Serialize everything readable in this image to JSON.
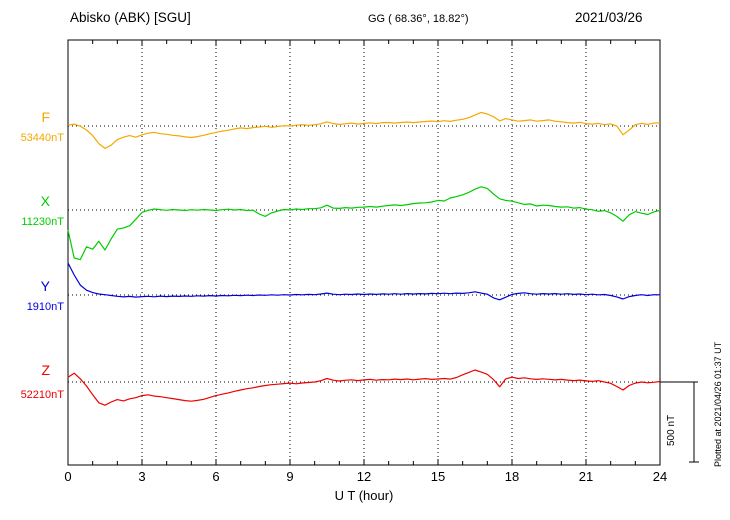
{
  "header": {
    "station": "Abisko (ABK)  [SGU]",
    "coords": "GG ( 68.36°,  18.82°)",
    "date": "2021/03/26"
  },
  "axis": {
    "xlabel": "U T (hour)",
    "x_ticks": [
      "0",
      "3",
      "6",
      "9",
      "12",
      "15",
      "18",
      "21",
      "24"
    ]
  },
  "scale_bar": {
    "label": "500 nT",
    "nT": 500
  },
  "footer": {
    "note": "Plotted at 2021/04/26 01:37 UT"
  },
  "chart_data": {
    "type": "line",
    "title": "Abisko (ABK) [SGU] magnetogram 2021/03/26",
    "xlabel": "U T (hour)",
    "x_range": [
      0,
      24
    ],
    "x_step_hours": 0.25,
    "scale_nT": 500,
    "grid": "dotted vertical every 3 h, dotted horizontal at each trace baseline",
    "series": [
      {
        "name": "F",
        "baseline_label": "53440nT",
        "baseline_nT": 53440,
        "color": "#f5a800",
        "offsets_nT": [
          5,
          12,
          -2,
          -25,
          -60,
          -110,
          -140,
          -120,
          -85,
          -70,
          -60,
          -70,
          -55,
          -45,
          -40,
          -48,
          -52,
          -58,
          -62,
          -68,
          -72,
          -66,
          -58,
          -48,
          -40,
          -32,
          -26,
          -18,
          -12,
          -16,
          -10,
          -6,
          -2,
          -8,
          -3,
          2,
          0,
          5,
          8,
          4,
          8,
          14,
          26,
          15,
          10,
          14,
          18,
          12,
          16,
          20,
          15,
          21,
          22,
          18,
          22,
          25,
          21,
          25,
          28,
          31,
          27,
          33,
          29,
          36,
          42,
          52,
          68,
          85,
          75,
          58,
          32,
          46,
          38,
          30,
          34,
          38,
          30,
          34,
          38,
          30,
          26,
          21,
          18,
          23,
          15,
          12,
          16,
          8,
          13,
          0,
          -55,
          -25,
          8,
          16,
          10,
          18,
          20
        ]
      },
      {
        "name": "X",
        "baseline_label": "11230nT",
        "baseline_nT": 11230,
        "color": "#00cc00",
        "offsets_nT": [
          -125,
          -300,
          -310,
          -230,
          -245,
          -195,
          -250,
          -180,
          -120,
          -112,
          -98,
          -58,
          -15,
          -2,
          6,
          2,
          -2,
          3,
          0,
          -3,
          2,
          -1,
          3,
          0,
          -3,
          2,
          5,
          0,
          3,
          -3,
          -1,
          -25,
          -40,
          -18,
          -6,
          3,
          0,
          6,
          3,
          8,
          8,
          14,
          30,
          12,
          10,
          15,
          12,
          17,
          18,
          22,
          18,
          24,
          28,
          32,
          28,
          34,
          40,
          44,
          45,
          50,
          60,
          56,
          75,
          84,
          95,
          110,
          130,
          145,
          135,
          100,
          70,
          60,
          55,
          45,
          35,
          38,
          25,
          30,
          28,
          22,
          18,
          20,
          12,
          15,
          5,
          2,
          -8,
          -4,
          -18,
          -40,
          -70,
          -30,
          -10,
          -20,
          -28,
          -12,
          -2
        ]
      },
      {
        "name": "Y",
        "baseline_label": "1910nT",
        "baseline_nT": 1910,
        "color": "#0000dd",
        "offsets_nT": [
          200,
          125,
          62,
          30,
          15,
          6,
          2,
          -3,
          -8,
          -12,
          -9,
          -13,
          -10,
          -8,
          -11,
          -7,
          -10,
          -7,
          -9,
          -6,
          -8,
          -5,
          -7,
          -4,
          -6,
          -3,
          -5,
          -2,
          -4,
          -1,
          -3,
          0,
          -2,
          1,
          -1,
          2,
          0,
          3,
          1,
          4,
          2,
          6,
          12,
          5,
          2,
          5,
          3,
          6,
          3,
          6,
          4,
          7,
          5,
          8,
          5,
          9,
          6,
          9,
          7,
          10,
          8,
          11,
          8,
          12,
          10,
          14,
          20,
          12,
          5,
          -18,
          -30,
          -14,
          4,
          10,
          14,
          8,
          5,
          9,
          6,
          9,
          5,
          8,
          4,
          6,
          2,
          5,
          1,
          3,
          -3,
          -12,
          -25,
          -10,
          -3,
          2,
          -3,
          2,
          1
        ]
      },
      {
        "name": "Z",
        "baseline_label": "52210nT",
        "baseline_nT": 52210,
        "color": "#ee0000",
        "offsets_nT": [
          30,
          55,
          20,
          -25,
          -80,
          -130,
          -145,
          -125,
          -110,
          -118,
          -105,
          -98,
          -85,
          -80,
          -88,
          -92,
          -98,
          -104,
          -110,
          -116,
          -120,
          -115,
          -108,
          -96,
          -85,
          -76,
          -68,
          -58,
          -50,
          -42,
          -36,
          -28,
          -22,
          -17,
          -14,
          -10,
          -7,
          -11,
          -6,
          -3,
          0,
          8,
          22,
          11,
          6,
          11,
          14,
          9,
          13,
          16,
          11,
          15,
          14,
          18,
          15,
          19,
          14,
          18,
          21,
          16,
          19,
          22,
          18,
          28,
          45,
          60,
          75,
          62,
          48,
          15,
          -30,
          20,
          30,
          22,
          26,
          20,
          16,
          20,
          17,
          13,
          16,
          12,
          9,
          12,
          7,
          4,
          8,
          0,
          -8,
          -28,
          -50,
          -22,
          -7,
          0,
          -5,
          -2,
          3
        ]
      }
    ]
  }
}
